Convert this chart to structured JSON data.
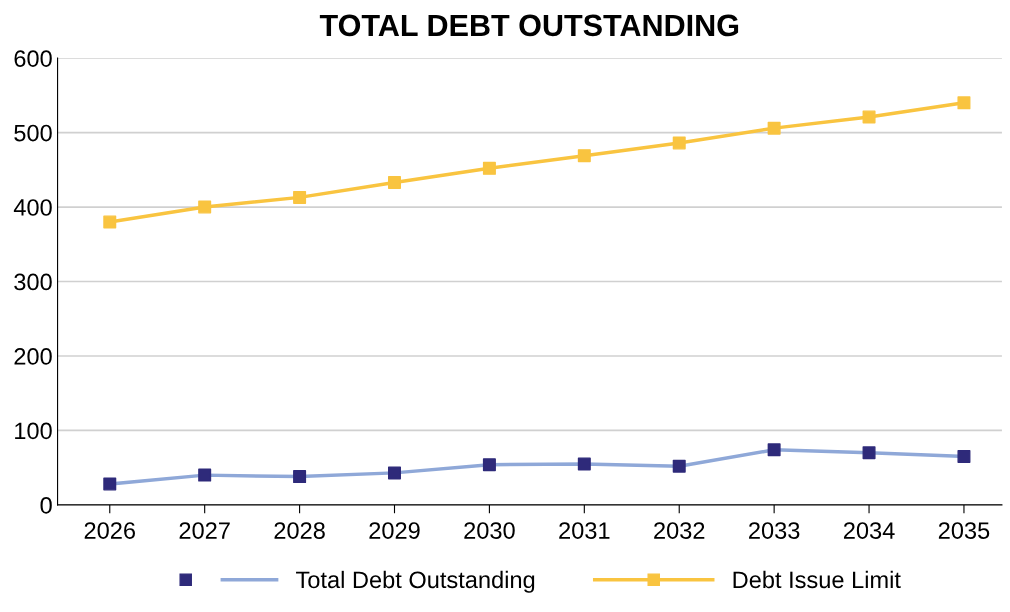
{
  "chart_data": {
    "type": "line",
    "title": "TOTAL DEBT OUTSTANDING",
    "categories": [
      "2026",
      "2027",
      "2028",
      "2029",
      "2030",
      "2031",
      "2032",
      "2033",
      "2034",
      "2035"
    ],
    "series": [
      {
        "name": "Total Debt Outstanding",
        "color": "#8fa8d8",
        "colors": [
          "#2e2a7a",
          "#2e2a7a",
          "#2e2a7a",
          "#2e2a7a",
          "#2e2a7a",
          "#2e2a7a",
          "#2e2a7a",
          "#2e2a7a",
          "#2e2a7a",
          "#2e2a7a"
        ],
        "values": [
          28,
          40,
          38,
          43,
          54,
          55,
          52,
          74,
          70,
          65
        ]
      },
      {
        "name": "Debt Issue Limit",
        "color": "#f9c440",
        "values": [
          380,
          400,
          413,
          433,
          452,
          469,
          486,
          506,
          521,
          540
        ]
      }
    ],
    "ylim": [
      0,
      600
    ],
    "yticks": [
      0,
      100,
      200,
      300,
      400,
      500,
      600
    ],
    "grid": "y",
    "legend": "bottom",
    "marker": "square",
    "line_style": "solid"
  }
}
